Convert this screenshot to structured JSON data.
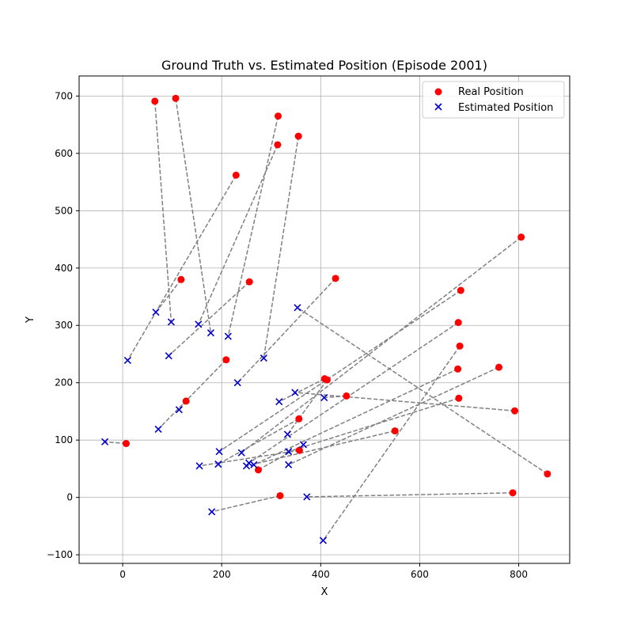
{
  "chart_data": {
    "type": "scatter",
    "title": "Ground Truth vs. Estimated Position (Episode 2001)",
    "xlabel": "X",
    "ylabel": "Y",
    "xlim": [
      -88,
      903
    ],
    "ylim": [
      -115,
      735
    ],
    "xticks": [
      0,
      200,
      400,
      600,
      800
    ],
    "yticks": [
      -100,
      0,
      100,
      200,
      300,
      400,
      500,
      600,
      700
    ],
    "xtick_labels": [
      "0",
      "200",
      "400",
      "600",
      "800"
    ],
    "ytick_labels": [
      "−100",
      "0",
      "100",
      "200",
      "300",
      "400",
      "500",
      "600",
      "700"
    ],
    "grid": true,
    "legend_position": "top-right",
    "colors": {
      "real": "#ff0000",
      "estimated": "#0000cc",
      "link": "#808080",
      "grid": "#b0b0b0"
    },
    "series": [
      {
        "name": "Real Position",
        "marker": "circle"
      },
      {
        "name": "Estimated Position",
        "marker": "x"
      }
    ],
    "pairs": [
      {
        "real": [
          65,
          691
        ],
        "est": [
          98,
          306
        ]
      },
      {
        "real": [
          107,
          696
        ],
        "est": [
          178,
          287
        ]
      },
      {
        "real": [
          314,
          665
        ],
        "est": [
          213,
          281
        ]
      },
      {
        "real": [
          313,
          615
        ],
        "est": [
          153,
          302
        ]
      },
      {
        "real": [
          355,
          630
        ],
        "est": [
          285,
          243
        ]
      },
      {
        "real": [
          229,
          562
        ],
        "est": [
          10,
          239
        ]
      },
      {
        "real": [
          805,
          454
        ],
        "est": [
          240,
          78
        ]
      },
      {
        "real": [
          118,
          380
        ],
        "est": [
          67,
          323
        ]
      },
      {
        "real": [
          256,
          376
        ],
        "est": [
          93,
          247
        ]
      },
      {
        "real": [
          430,
          382
        ],
        "est": [
          232,
          200
        ]
      },
      {
        "real": [
          683,
          361
        ],
        "est": [
          195,
          80
        ]
      },
      {
        "real": [
          678,
          305
        ],
        "est": [
          255,
          60
        ]
      },
      {
        "real": [
          681,
          264
        ],
        "est": [
          405,
          -75
        ]
      },
      {
        "real": [
          760,
          227
        ],
        "est": [
          335,
          57
        ]
      },
      {
        "real": [
          677,
          224
        ],
        "est": [
          265,
          57
        ]
      },
      {
        "real": [
          679,
          173
        ],
        "est": [
          335,
          80
        ]
      },
      {
        "real": [
          792,
          151
        ],
        "est": [
          348,
          183
        ]
      },
      {
        "real": [
          858,
          41
        ],
        "est": [
          353,
          331
        ]
      },
      {
        "real": [
          788,
          8
        ],
        "est": [
          372,
          1
        ]
      },
      {
        "real": [
          408,
          207
        ],
        "est": [
          316,
          167
        ]
      },
      {
        "real": [
          413,
          205
        ],
        "est": [
          333,
          110
        ]
      },
      {
        "real": [
          452,
          177
        ],
        "est": [
          407,
          174
        ]
      },
      {
        "real": [
          550,
          116
        ],
        "est": [
          250,
          55
        ]
      },
      {
        "real": [
          356,
          137
        ],
        "est": [
          193,
          58
        ]
      },
      {
        "real": [
          357,
          82
        ],
        "est": [
          155,
          55
        ]
      },
      {
        "real": [
          209,
          240
        ],
        "est": [
          72,
          119
        ]
      },
      {
        "real": [
          128,
          168
        ],
        "est": [
          114,
          153
        ]
      },
      {
        "real": [
          7,
          94
        ],
        "est": [
          -36,
          97
        ]
      },
      {
        "real": [
          274,
          48
        ],
        "est": [
          365,
          92
        ]
      },
      {
        "real": [
          318,
          3
        ],
        "est": [
          180,
          -25
        ]
      }
    ]
  }
}
